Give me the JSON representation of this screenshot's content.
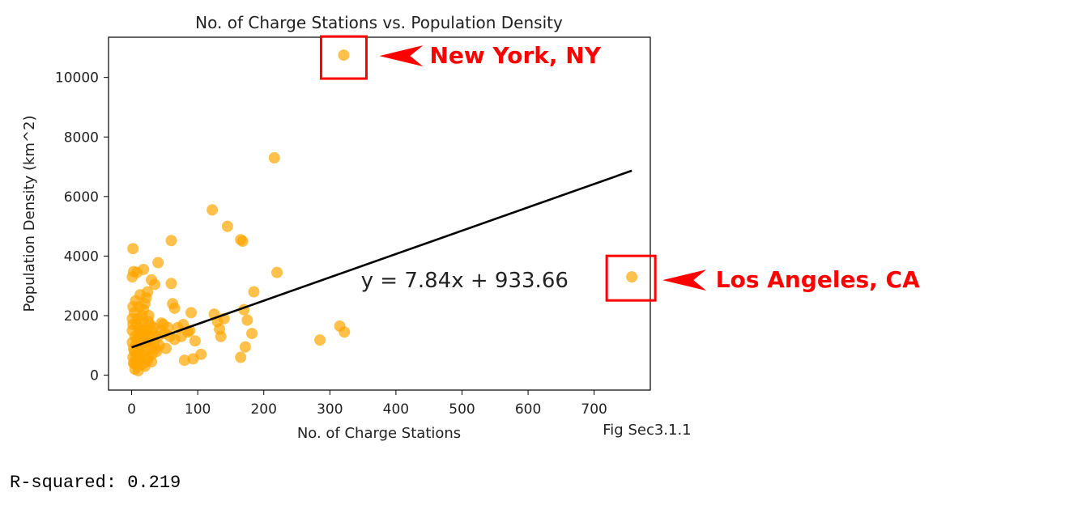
{
  "chart_data": {
    "type": "scatter",
    "title": "No. of Charge Stations vs. Population Density",
    "xlabel": "No. of Charge Stations",
    "ylabel": "Population Density (km^2)",
    "xlim": [
      -35,
      785
    ],
    "ylim": [
      -500,
      11350
    ],
    "xticks": [
      0,
      100,
      200,
      300,
      400,
      500,
      600,
      700
    ],
    "yticks": [
      0,
      2000,
      4000,
      6000,
      8000,
      10000
    ],
    "grid": false,
    "point_color": "#ffa500",
    "line_color": "#000000",
    "regression": {
      "slope": 7.84,
      "intercept": 933.66,
      "x_range": [
        0,
        757
      ],
      "equation": "y = 7.84x + 933.66"
    },
    "equation_anchor": {
      "x": 347,
      "y": 3200
    },
    "points": [
      [
        321,
        10750
      ],
      [
        757,
        3300
      ],
      [
        216,
        7300
      ],
      [
        122,
        5550
      ],
      [
        145,
        5000
      ],
      [
        165,
        4550
      ],
      [
        168,
        4500
      ],
      [
        60,
        4520
      ],
      [
        2,
        4250
      ],
      [
        40,
        3780
      ],
      [
        3,
        3480
      ],
      [
        8,
        3450
      ],
      [
        18,
        3550
      ],
      [
        220,
        3450
      ],
      [
        30,
        3200
      ],
      [
        35,
        3050
      ],
      [
        60,
        3080
      ],
      [
        185,
        2800
      ],
      [
        62,
        2400
      ],
      [
        65,
        2250
      ],
      [
        170,
        2200
      ],
      [
        175,
        1850
      ],
      [
        90,
        2100
      ],
      [
        125,
        2050
      ],
      [
        130,
        1800
      ],
      [
        133,
        1550
      ],
      [
        135,
        1300
      ],
      [
        140,
        1900
      ],
      [
        182,
        1400
      ],
      [
        96,
        1150
      ],
      [
        172,
        950
      ],
      [
        165,
        600
      ],
      [
        285,
        1180
      ],
      [
        315,
        1650
      ],
      [
        322,
        1450
      ],
      [
        105,
        700
      ],
      [
        80,
        500
      ],
      [
        93,
        550
      ],
      [
        85,
        1450
      ],
      [
        75,
        1300
      ],
      [
        55,
        1600
      ],
      [
        45,
        1750
      ],
      [
        50,
        1400
      ],
      [
        65,
        1200
      ],
      [
        42,
        1000
      ],
      [
        38,
        800
      ],
      [
        25,
        600
      ],
      [
        20,
        300
      ],
      [
        10,
        150
      ],
      [
        5,
        200
      ],
      [
        3,
        400
      ],
      [
        2,
        600
      ],
      [
        4,
        800
      ],
      [
        6,
        1000
      ],
      [
        8,
        1200
      ],
      [
        10,
        1400
      ],
      [
        12,
        1600
      ],
      [
        14,
        1800
      ],
      [
        16,
        2000
      ],
      [
        18,
        2200
      ],
      [
        20,
        2400
      ],
      [
        22,
        2600
      ],
      [
        24,
        2800
      ],
      [
        26,
        2000
      ],
      [
        28,
        1700
      ],
      [
        30,
        1500
      ],
      [
        32,
        1300
      ],
      [
        34,
        1100
      ],
      [
        36,
        900
      ],
      [
        15,
        700
      ],
      [
        12,
        500
      ],
      [
        7,
        350
      ],
      [
        9,
        1900
      ],
      [
        11,
        2300
      ],
      [
        13,
        2700
      ],
      [
        1,
        1100
      ],
      [
        1,
        1500
      ],
      [
        1,
        1900
      ],
      [
        2,
        2300
      ],
      [
        1,
        3300
      ],
      [
        3,
        900
      ],
      [
        5,
        1300
      ],
      [
        7,
        1700
      ],
      [
        9,
        500
      ],
      [
        11,
        900
      ],
      [
        13,
        1300
      ],
      [
        15,
        1500
      ],
      [
        17,
        1000
      ],
      [
        19,
        1200
      ],
      [
        21,
        800
      ],
      [
        23,
        1500
      ],
      [
        25,
        1800
      ],
      [
        27,
        1100
      ],
      [
        29,
        900
      ],
      [
        31,
        700
      ],
      [
        33,
        1600
      ],
      [
        40,
        1300
      ],
      [
        44,
        1500
      ],
      [
        48,
        1700
      ],
      [
        52,
        900
      ],
      [
        58,
        1300
      ],
      [
        70,
        1600
      ],
      [
        78,
        1700
      ],
      [
        88,
        1500
      ],
      [
        2,
        1700
      ],
      [
        4,
        2100
      ],
      [
        6,
        2500
      ],
      [
        8,
        700
      ],
      [
        14,
        1100
      ],
      [
        16,
        1300
      ],
      [
        18,
        1500
      ],
      [
        22,
        1100
      ],
      [
        26,
        1300
      ],
      [
        4,
        400
      ],
      [
        6,
        600
      ],
      [
        10,
        700
      ],
      [
        14,
        350
      ],
      [
        18,
        400
      ],
      [
        24,
        500
      ],
      [
        30,
        450
      ]
    ],
    "annotations": [
      {
        "text": "New York, NY",
        "box_center": [
          321,
          10750
        ],
        "text_at": [
          451,
          10750
        ]
      },
      {
        "text": "Los Angeles, CA",
        "box_center": [
          757,
          3300
        ],
        "text_at": [
          884,
          3150
        ]
      },
      {
        "text": "Fig Sec3.1.1",
        "text_at": [
          713,
          -1800
        ]
      }
    ]
  },
  "output_text": "R-squared: 0.219"
}
